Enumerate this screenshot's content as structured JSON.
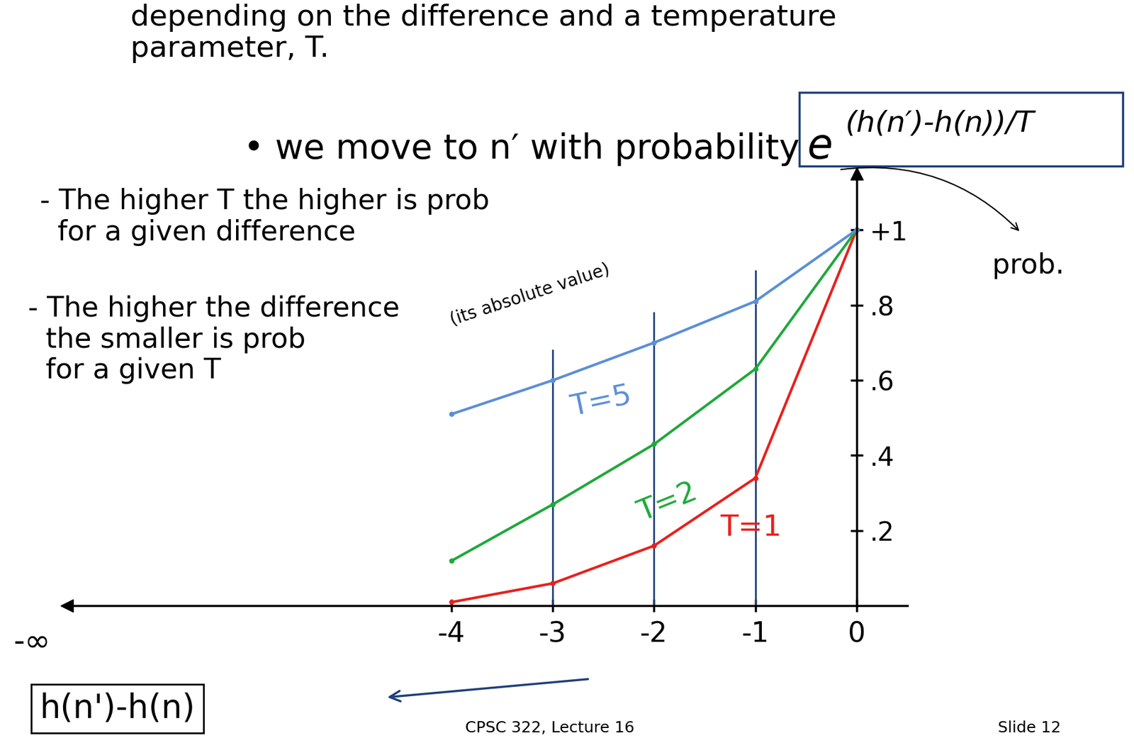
{
  "chart_data": {
    "type": "line",
    "title": "depending on the difference and a temperature\nparameter, T.",
    "subtitle": "• we move to n′ with probability",
    "formula": {
      "base": "e",
      "exponent": "(h(n′)-h(n))/T"
    },
    "xlabel": "h(n')-h(n)",
    "ylabel": "prob.",
    "x": [
      -4,
      -3,
      -2,
      -1,
      0
    ],
    "series": [
      {
        "name": "T=1",
        "color": "#e8201c",
        "values": [
          0.01,
          0.06,
          0.16,
          0.34,
          1.0
        ]
      },
      {
        "name": "T=2",
        "color": "#1fa83a",
        "values": [
          0.12,
          0.27,
          0.43,
          0.63,
          1.0
        ]
      },
      {
        "name": "T=5",
        "color": "#5b8fd6",
        "values": [
          0.51,
          0.6,
          0.7,
          0.81,
          1.0
        ]
      }
    ],
    "marker": "o",
    "line_style": "solid",
    "grid": false,
    "xlim": [
      -7.8,
      0.5
    ],
    "ylim": [
      0,
      1.15
    ],
    "xticks": [
      -4,
      -3,
      -2,
      -1,
      0
    ],
    "yticks": [
      {
        "value": 0.2,
        "label": ".2"
      },
      {
        "value": 0.4,
        "label": ".4"
      },
      {
        "value": 0.6,
        "label": ".6"
      },
      {
        "value": 0.8,
        "label": ".8"
      },
      {
        "value": 1.0,
        "label": "+1"
      }
    ],
    "annotations": {
      "note_1": "- The higher T the higher is prob\n  for a given difference",
      "note_2": "- The higher the difference\n  the smaller is prob\n  for a given T",
      "note_3": "(its absolute value)",
      "infinity": "-∞",
      "footer_left": "CPSC 322, Lecture 16",
      "footer_right": "Slide 12"
    }
  }
}
